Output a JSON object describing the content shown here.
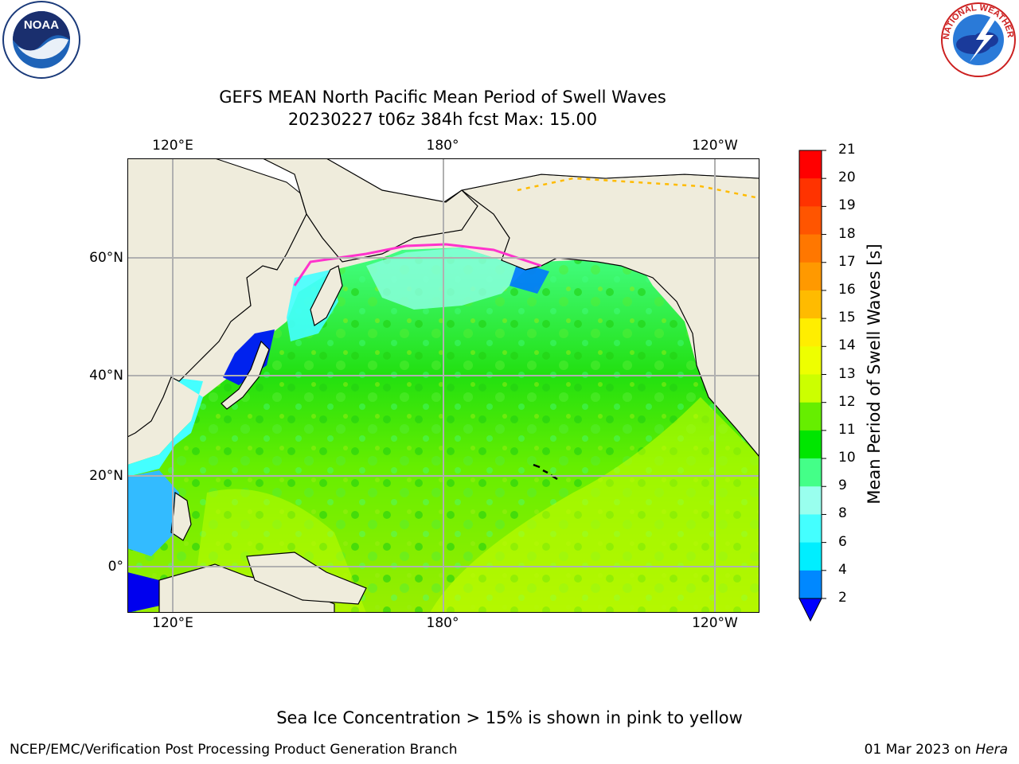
{
  "title": {
    "line1": "GEFS MEAN North Pacific Mean Period of Swell Waves",
    "line2": "20230227 t06z 384h fcst   Max: 15.00"
  },
  "map": {
    "lon_labels": [
      "120°E",
      "180°",
      "120°W"
    ],
    "lat_labels": [
      "60°N",
      "40°N",
      "20°N",
      "0°"
    ],
    "colors": {
      "land": "#efecdc",
      "ocean_dominant": "#37e60a",
      "coast": "#000000",
      "grid": "#b0b0b0"
    }
  },
  "colorbar": {
    "label": "Mean Period of Swell Waves [s]",
    "ticks": [
      "21",
      "20",
      "19",
      "18",
      "17",
      "16",
      "15",
      "14",
      "13",
      "12",
      "11",
      "10",
      "9",
      "8",
      "6",
      "4",
      "2"
    ],
    "colors": [
      "#ff0000",
      "#ff3300",
      "#ff5500",
      "#ff7700",
      "#ff9900",
      "#ffbb00",
      "#ffee00",
      "#eeff00",
      "#ccff00",
      "#66ee00",
      "#00e600",
      "#44ff88",
      "#99ffee",
      "#44ffff",
      "#00eeff",
      "#0088ff"
    ],
    "under_color": "#0000ff"
  },
  "logos": {
    "noaa_text": "NOAA",
    "nws_text": "NATIONAL WEATHER SERVICE"
  },
  "note": "Sea Ice Concentration > 15% is shown in pink to yellow",
  "footer": {
    "left": "NCEP/EMC/Verification Post Processing Product Generation Branch",
    "date": "01 Mar 2023 on ",
    "machine": "Hera"
  }
}
